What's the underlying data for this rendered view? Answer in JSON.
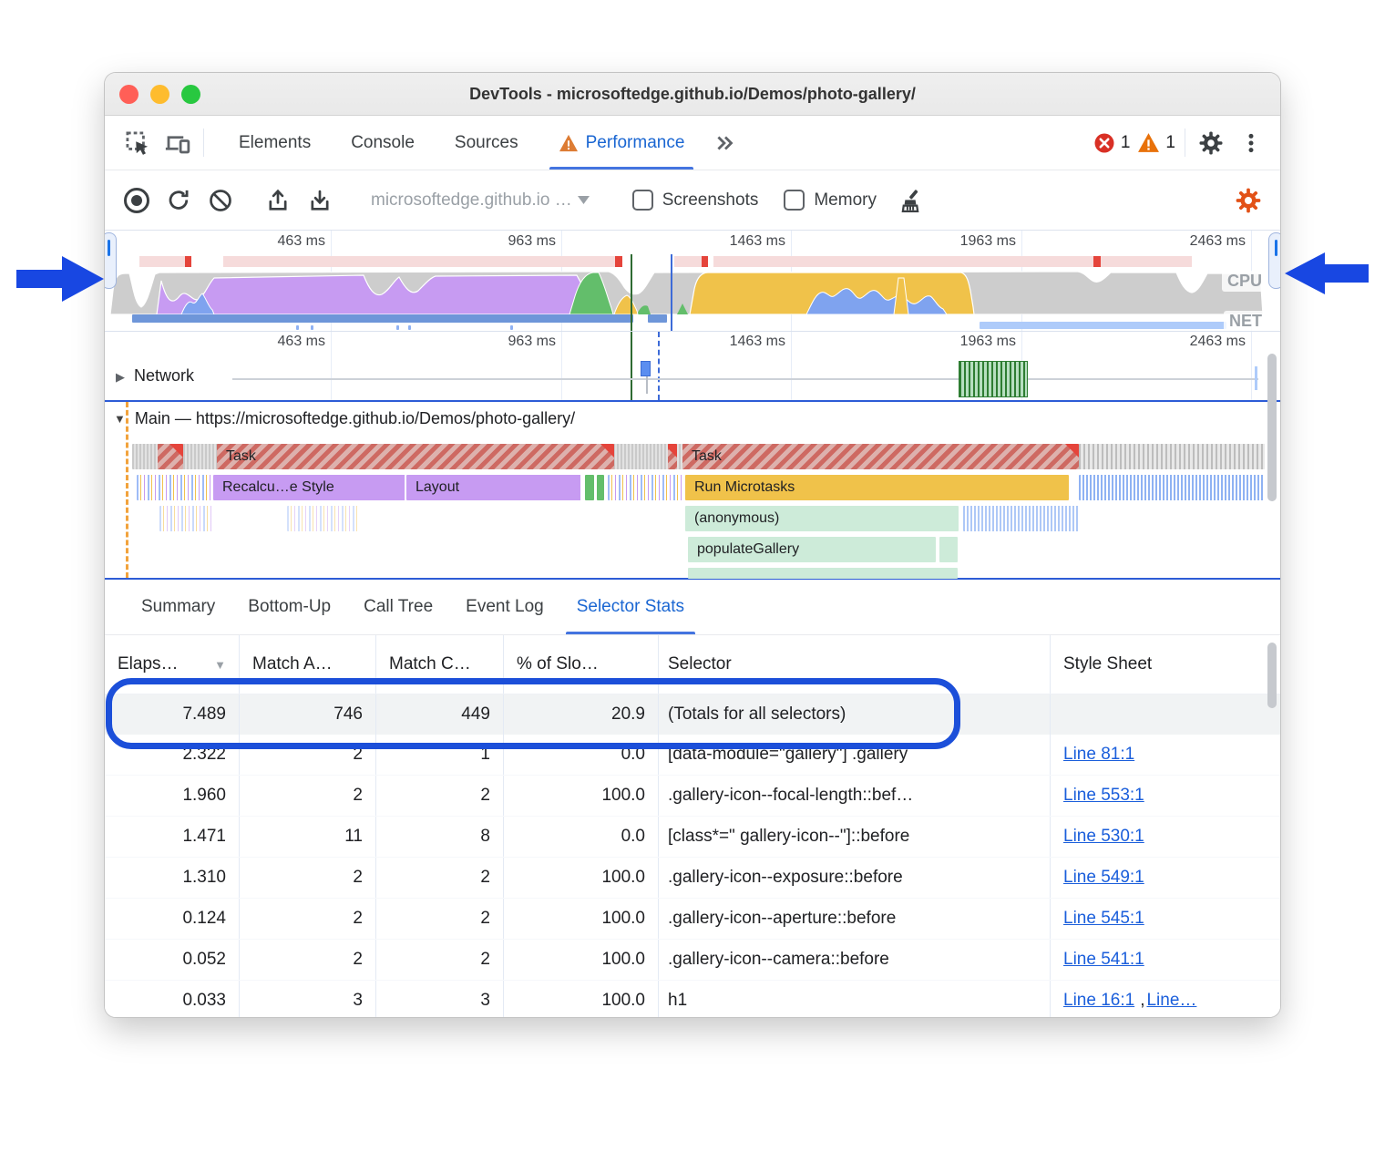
{
  "title_bar": {
    "title": "DevTools - microsoftedge.github.io/Demos/photo-gallery/"
  },
  "tab_bar": {
    "tabs": [
      {
        "label": "Elements",
        "active": false,
        "warning": false
      },
      {
        "label": "Console",
        "active": false,
        "warning": false
      },
      {
        "label": "Sources",
        "active": false,
        "warning": false
      },
      {
        "label": "Performance",
        "active": true,
        "warning": true
      }
    ],
    "error_count": "1",
    "warning_count": "1"
  },
  "toolbar": {
    "profile_select": "microsoftedge.github.io …",
    "screenshots_label": "Screenshots",
    "memory_label": "Memory"
  },
  "overview": {
    "time_labels": [
      "463 ms",
      "963 ms",
      "1463 ms",
      "1963 ms",
      "2463 ms"
    ],
    "cpu_label": "CPU",
    "net_label": "NET"
  },
  "flame": {
    "time_labels": [
      "463 ms",
      "963 ms",
      "1463 ms",
      "1963 ms",
      "2463 ms"
    ],
    "network_label": "Network",
    "main_label": "Main — https://microsoftedge.github.io/Demos/photo-gallery/",
    "bars": {
      "task1": "Task",
      "task2": "Task",
      "recalc": "Recalcu…e Style",
      "layout": "Layout",
      "microtasks": "Run Microtasks",
      "anonymous": "(anonymous)",
      "populate": "populateGallery"
    }
  },
  "panel_tabs": {
    "items": [
      {
        "label": "Summary",
        "active": false
      },
      {
        "label": "Bottom-Up",
        "active": false
      },
      {
        "label": "Call Tree",
        "active": false
      },
      {
        "label": "Event Log",
        "active": false
      },
      {
        "label": "Selector Stats",
        "active": true
      }
    ]
  },
  "selector_stats": {
    "columns": [
      "Elaps…",
      "Match A…",
      "Match C…",
      "% of Slo…",
      "Selector",
      "Style Sheet"
    ],
    "rows": [
      {
        "elapsed": "7.489",
        "match_attempts": "746",
        "match_count": "449",
        "slow_pct": "20.9",
        "selector": "(Totals for all selectors)",
        "style_sheet": []
      },
      {
        "elapsed": "2.322",
        "match_attempts": "2",
        "match_count": "1",
        "slow_pct": "0.0",
        "selector": "[data-module=\"gallery\"] .gallery",
        "style_sheet": [
          "Line 81:1"
        ]
      },
      {
        "elapsed": "1.960",
        "match_attempts": "2",
        "match_count": "2",
        "slow_pct": "100.0",
        "selector": ".gallery-icon--focal-length::bef…",
        "style_sheet": [
          "Line 553:1"
        ]
      },
      {
        "elapsed": "1.471",
        "match_attempts": "11",
        "match_count": "8",
        "slow_pct": "0.0",
        "selector": "[class*=\" gallery-icon--\"]::before",
        "style_sheet": [
          "Line 530:1"
        ]
      },
      {
        "elapsed": "1.310",
        "match_attempts": "2",
        "match_count": "2",
        "slow_pct": "100.0",
        "selector": ".gallery-icon--exposure::before",
        "style_sheet": [
          "Line 549:1"
        ]
      },
      {
        "elapsed": "0.124",
        "match_attempts": "2",
        "match_count": "2",
        "slow_pct": "100.0",
        "selector": ".gallery-icon--aperture::before",
        "style_sheet": [
          "Line 545:1"
        ]
      },
      {
        "elapsed": "0.052",
        "match_attempts": "2",
        "match_count": "2",
        "slow_pct": "100.0",
        "selector": ".gallery-icon--camera::before",
        "style_sheet": [
          "Line 541:1"
        ]
      },
      {
        "elapsed": "0.033",
        "match_attempts": "3",
        "match_count": "3",
        "slow_pct": "100.0",
        "selector": "h1",
        "style_sheet": [
          "Line 16:1",
          "Line…"
        ]
      }
    ]
  },
  "colors": {
    "accent_blue": "#1a66d2",
    "annotation_blue": "#1c4fd9",
    "cpu_purple": "#c79bf2",
    "cpu_yellow": "#f0c24a",
    "cpu_green": "#63be6b",
    "cpu_blue": "#7fa3ef",
    "error_red": "#d93025",
    "warning_orange": "#e8710a"
  }
}
